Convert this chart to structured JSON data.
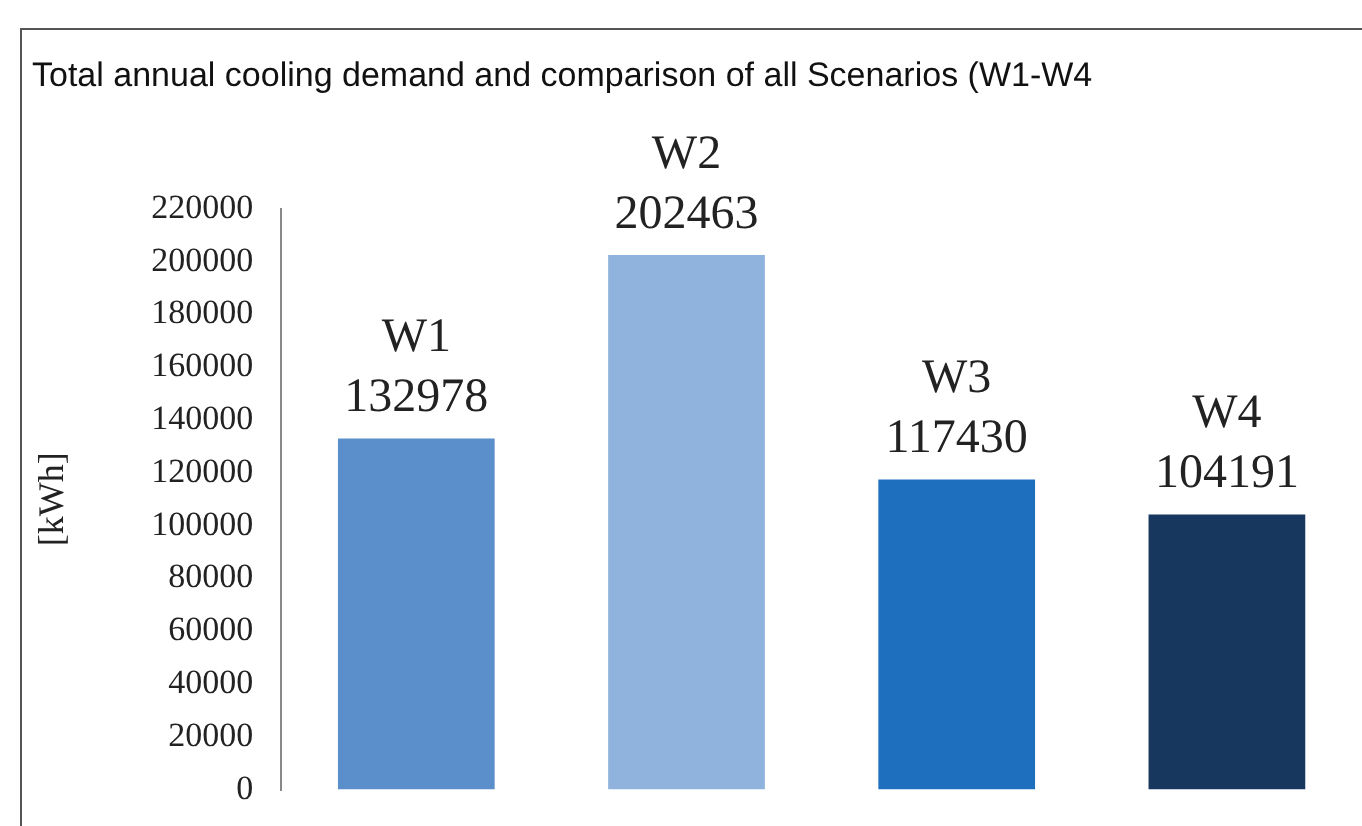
{
  "chart_data": {
    "type": "bar",
    "title": "Total annual cooling demand and comparison of all Scenarios (W1-W4",
    "ylabel": "[kWh]",
    "categories": [
      "W1",
      "W2",
      "W3",
      "W4"
    ],
    "values": [
      132978,
      202463,
      117430,
      104191
    ],
    "colors": [
      "#5b8fcb",
      "#8fb3dd",
      "#1f6fbf",
      "#17375e"
    ],
    "ylim": [
      0,
      220000
    ],
    "yticks": [
      0,
      20000,
      40000,
      60000,
      80000,
      100000,
      120000,
      140000,
      160000,
      180000,
      200000,
      220000
    ],
    "grid": false,
    "legend": false,
    "tick_labels": "y",
    "data_labels": true
  }
}
